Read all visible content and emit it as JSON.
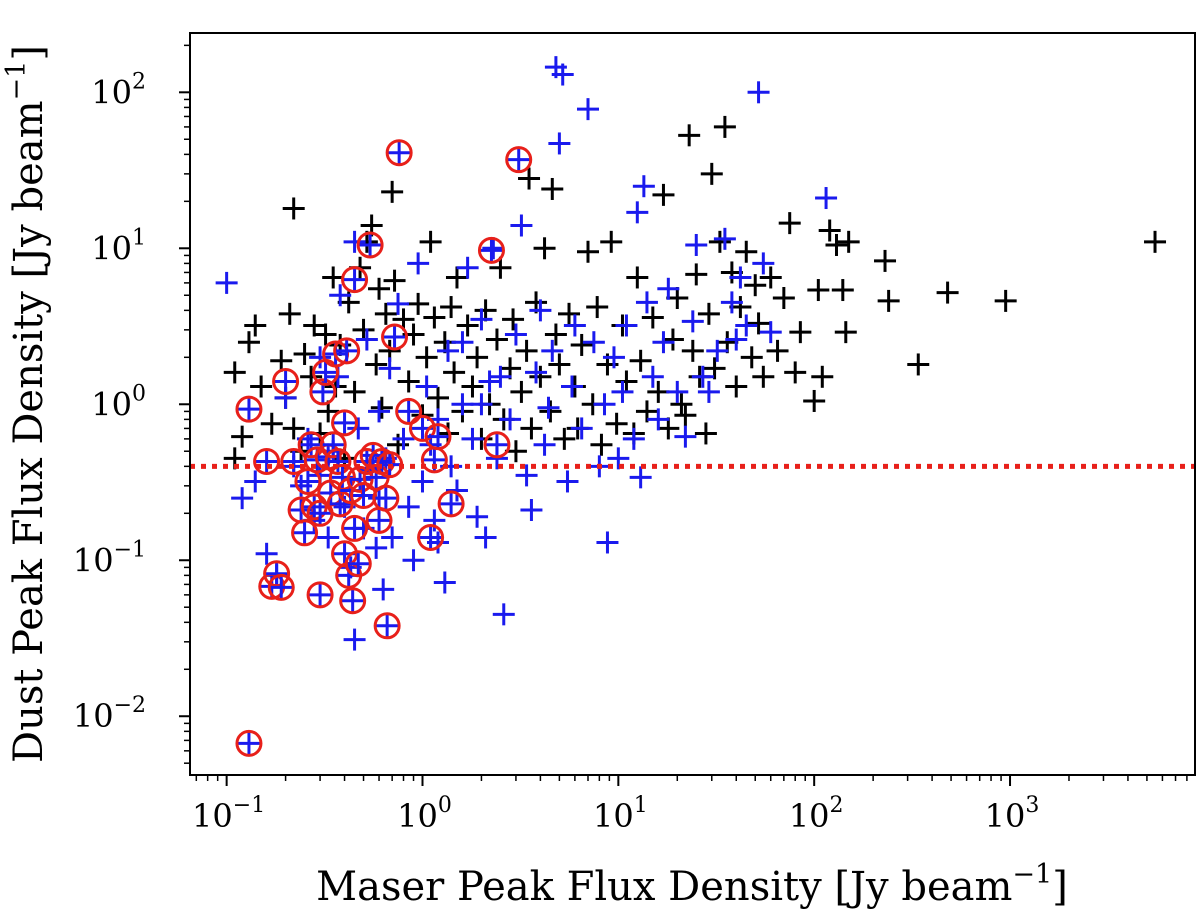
{
  "chart_data": {
    "type": "scatter",
    "xscale": "log",
    "yscale": "log",
    "xlabel": "Maser Peak Flux Density [Jy beam",
    "xlabel_sup": "−1",
    "xlabel_end": "]",
    "ylabel": "Dust Peak Flux Density [Jy beam",
    "ylabel_sup": "−1",
    "ylabel_end": "]",
    "xlim": [
      0.065,
      8800
    ],
    "ylim": [
      0.0042,
      240
    ],
    "xticks": [
      {
        "value": 0.1,
        "base": "10",
        "exp": "−1"
      },
      {
        "value": 1,
        "base": "10",
        "exp": "0"
      },
      {
        "value": 10,
        "base": "10",
        "exp": "1"
      },
      {
        "value": 100,
        "base": "10",
        "exp": "2"
      },
      {
        "value": 1000,
        "base": "10",
        "exp": "3"
      }
    ],
    "yticks": [
      {
        "value": 0.01,
        "base": "10",
        "exp": "−2"
      },
      {
        "value": 0.1,
        "base": "10",
        "exp": "−1"
      },
      {
        "value": 1,
        "base": "10",
        "exp": "0"
      },
      {
        "value": 10,
        "base": "10",
        "exp": "1"
      },
      {
        "value": 100,
        "base": "10",
        "exp": "2"
      }
    ],
    "threshold": {
      "y": 0.4,
      "color": "#e8201a",
      "style": "dotted"
    },
    "colors": {
      "black_series": "#000000",
      "blue_series": "#1a1aee",
      "circle": "#e8201a"
    },
    "series": [
      {
        "name": "black",
        "marker": "plus",
        "points": [
          [
            0.11,
            0.45
          ],
          [
            0.11,
            1.6
          ],
          [
            0.12,
            0.62
          ],
          [
            0.13,
            2.5
          ],
          [
            0.14,
            3.2
          ],
          [
            0.15,
            1.3
          ],
          [
            0.17,
            0.75
          ],
          [
            0.19,
            1.9
          ],
          [
            0.2,
            1.1
          ],
          [
            0.21,
            3.8
          ],
          [
            0.22,
            0.7
          ],
          [
            0.22,
            18
          ],
          [
            0.24,
            0.5
          ],
          [
            0.25,
            2.1
          ],
          [
            0.27,
            1.5
          ],
          [
            0.28,
            3.2
          ],
          [
            0.3,
            0.65
          ],
          [
            0.32,
            2.8
          ],
          [
            0.33,
            0.9
          ],
          [
            0.35,
            6.5
          ],
          [
            0.36,
            1.3
          ],
          [
            0.38,
            2.4
          ],
          [
            0.4,
            0.45
          ],
          [
            0.42,
            4.5
          ],
          [
            0.45,
            1.2
          ],
          [
            0.48,
            7.5
          ],
          [
            0.5,
            3.0
          ],
          [
            0.52,
            11
          ],
          [
            0.55,
            14
          ],
          [
            0.58,
            1.8
          ],
          [
            0.6,
            5.5
          ],
          [
            0.62,
            0.95
          ],
          [
            0.65,
            3.8
          ],
          [
            0.68,
            2.2
          ],
          [
            0.7,
            23
          ],
          [
            0.72,
            6.2
          ],
          [
            0.75,
            0.55
          ],
          [
            0.8,
            3.5
          ],
          [
            0.85,
            1.4
          ],
          [
            0.9,
            2.8
          ],
          [
            0.95,
            4.4
          ],
          [
            1.0,
            0.85
          ],
          [
            1.05,
            2.0
          ],
          [
            1.1,
            11
          ],
          [
            1.15,
            3.6
          ],
          [
            1.2,
            1.1
          ],
          [
            1.3,
            2.5
          ],
          [
            1.35,
            0.65
          ],
          [
            1.4,
            4.2
          ],
          [
            1.45,
            1.6
          ],
          [
            1.5,
            6.5
          ],
          [
            1.6,
            0.9
          ],
          [
            1.7,
            3.2
          ],
          [
            1.8,
            1.3
          ],
          [
            1.9,
            2.0
          ],
          [
            2.0,
            0.6
          ],
          [
            2.1,
            4.0
          ],
          [
            2.2,
            1.0
          ],
          [
            2.4,
            2.6
          ],
          [
            2.5,
            7.5
          ],
          [
            2.6,
            0.8
          ],
          [
            2.8,
            1.7
          ],
          [
            2.9,
            3.5
          ],
          [
            3.0,
            0.5
          ],
          [
            3.2,
            1.2
          ],
          [
            3.4,
            2.2
          ],
          [
            3.5,
            28
          ],
          [
            3.6,
            0.7
          ],
          [
            3.8,
            4.5
          ],
          [
            4.0,
            1.5
          ],
          [
            4.2,
            10
          ],
          [
            4.5,
            0.9
          ],
          [
            4.6,
            24
          ],
          [
            4.8,
            2.8
          ],
          [
            5.0,
            1.8
          ],
          [
            5.3,
            0.6
          ],
          [
            5.6,
            3.8
          ],
          [
            6.0,
            1.3
          ],
          [
            6.2,
            0.7
          ],
          [
            6.5,
            2.4
          ],
          [
            7.0,
            9.5
          ],
          [
            7.4,
            1.0
          ],
          [
            7.8,
            4.2
          ],
          [
            8.2,
            0.55
          ],
          [
            8.8,
            1.8
          ],
          [
            9.2,
            11
          ],
          [
            9.8,
            0.75
          ],
          [
            10.5,
            3.2
          ],
          [
            11,
            1.4
          ],
          [
            12,
            0.65
          ],
          [
            12.5,
            6.5
          ],
          [
            13,
            1.9
          ],
          [
            14,
            0.9
          ],
          [
            15,
            3.6
          ],
          [
            16,
            1.2
          ],
          [
            17,
            22
          ],
          [
            18,
            0.7
          ],
          [
            19,
            2.6
          ],
          [
            20,
            4.8
          ],
          [
            21,
            1.0
          ],
          [
            22,
            0.85
          ],
          [
            23,
            53
          ],
          [
            24,
            2.2
          ],
          [
            25,
            6.8
          ],
          [
            26,
            1.5
          ],
          [
            28,
            0.65
          ],
          [
            29,
            3.8
          ],
          [
            30,
            30
          ],
          [
            31,
            1.7
          ],
          [
            33,
            11
          ],
          [
            35,
            60
          ],
          [
            36,
            2.5
          ],
          [
            38,
            7.0
          ],
          [
            40,
            1.3
          ],
          [
            42,
            4.2
          ],
          [
            45,
            9.5
          ],
          [
            48,
            2.0
          ],
          [
            50,
            5.8
          ],
          [
            52,
            3.3
          ],
          [
            55,
            1.5
          ],
          [
            60,
            6.5
          ],
          [
            65,
            2.2
          ],
          [
            70,
            4.8
          ],
          [
            75,
            14.5
          ],
          [
            80,
            1.6
          ],
          [
            85,
            2.9
          ],
          [
            100,
            1.05
          ],
          [
            105,
            5.4
          ],
          [
            110,
            1.5
          ],
          [
            120,
            13
          ],
          [
            130,
            10.5
          ],
          [
            140,
            5.4
          ],
          [
            145,
            2.9
          ],
          [
            150,
            11
          ],
          [
            230,
            8.3
          ],
          [
            240,
            4.6
          ],
          [
            480,
            5.2
          ],
          [
            950,
            4.6
          ],
          [
            5500,
            11
          ],
          [
            340,
            1.8
          ]
        ]
      },
      {
        "name": "blue",
        "marker": "plus",
        "points": [
          [
            0.1,
            6.0
          ],
          [
            0.12,
            0.25
          ],
          [
            0.14,
            0.32
          ],
          [
            0.16,
            0.11
          ],
          [
            0.18,
            0.08
          ],
          [
            0.2,
            1.1
          ],
          [
            0.22,
            0.4
          ],
          [
            0.24,
            0.3
          ],
          [
            0.26,
            0.6
          ],
          [
            0.28,
            0.18
          ],
          [
            0.3,
            0.35
          ],
          [
            0.33,
            0.14
          ],
          [
            0.35,
            0.5
          ],
          [
            0.37,
            1.5
          ],
          [
            0.38,
            5.0
          ],
          [
            0.4,
            0.22
          ],
          [
            0.43,
            0.09
          ],
          [
            0.45,
            0.031
          ],
          [
            0.47,
            0.7
          ],
          [
            0.5,
            0.16
          ],
          [
            0.52,
            2.6
          ],
          [
            0.55,
            0.38
          ],
          [
            0.58,
            0.12
          ],
          [
            0.6,
            0.25
          ],
          [
            0.63,
            0.065
          ],
          [
            0.65,
            0.45
          ],
          [
            0.68,
            1.7
          ],
          [
            0.7,
            0.14
          ],
          [
            0.75,
            4.4
          ],
          [
            0.8,
            0.6
          ],
          [
            0.85,
            0.22
          ],
          [
            0.9,
            0.1
          ],
          [
            0.95,
            8.0
          ],
          [
            1.0,
            0.32
          ],
          [
            1.05,
            1.3
          ],
          [
            1.1,
            0.55
          ],
          [
            1.15,
            0.18
          ],
          [
            1.2,
            0.13
          ],
          [
            1.3,
            0.072
          ],
          [
            1.35,
            2.2
          ],
          [
            1.4,
            0.4
          ],
          [
            1.5,
            0.28
          ],
          [
            1.6,
            1.0
          ],
          [
            1.7,
            7.5
          ],
          [
            1.8,
            0.6
          ],
          [
            1.9,
            0.19
          ],
          [
            2.0,
            3.5
          ],
          [
            2.1,
            0.14
          ],
          [
            2.2,
            1.4
          ],
          [
            2.3,
            10
          ],
          [
            2.4,
            0.45
          ],
          [
            2.6,
            0.045
          ],
          [
            2.8,
            0.8
          ],
          [
            3.0,
            2.8
          ],
          [
            3.2,
            14
          ],
          [
            3.4,
            0.35
          ],
          [
            3.6,
            0.21
          ],
          [
            3.8,
            1.6
          ],
          [
            4.0,
            4.0
          ],
          [
            4.2,
            0.55
          ],
          [
            4.4,
            0.95
          ],
          [
            4.6,
            2.2
          ],
          [
            4.8,
            145
          ],
          [
            5.0,
            47
          ],
          [
            5.2,
            130
          ],
          [
            5.5,
            0.32
          ],
          [
            5.8,
            1.3
          ],
          [
            6.0,
            3.2
          ],
          [
            6.5,
            0.7
          ],
          [
            7.0,
            78
          ],
          [
            7.5,
            2.5
          ],
          [
            8.0,
            0.4
          ],
          [
            8.5,
            1.0
          ],
          [
            8.8,
            0.13
          ],
          [
            9.5,
            2.0
          ],
          [
            10,
            0.45
          ],
          [
            10.5,
            1.2
          ],
          [
            11,
            3.2
          ],
          [
            12,
            0.6
          ],
          [
            12.5,
            17
          ],
          [
            13,
            0.34
          ],
          [
            13.5,
            25
          ],
          [
            14,
            4.5
          ],
          [
            15,
            1.5
          ],
          [
            16,
            0.8
          ],
          [
            17,
            2.5
          ],
          [
            18,
            5.5
          ],
          [
            20,
            1.2
          ],
          [
            22,
            0.62
          ],
          [
            24,
            3.4
          ],
          [
            25,
            10.5
          ],
          [
            27,
            1.5
          ],
          [
            29,
            1.2
          ],
          [
            32,
            2.2
          ],
          [
            35,
            11.5
          ],
          [
            38,
            4.5
          ],
          [
            40,
            2.6
          ],
          [
            42,
            6.5
          ],
          [
            45,
            3.2
          ],
          [
            52,
            100
          ],
          [
            55,
            8.0
          ],
          [
            60,
            2.9
          ],
          [
            115,
            21
          ],
          [
            0.45,
            11
          ],
          [
            2.0,
            1.0
          ],
          [
            1.6,
            2.5
          ],
          [
            0.3,
            2.0
          ],
          [
            0.6,
            0.9
          ],
          [
            1.2,
            0.8
          ],
          [
            2.5,
            1.5
          ]
        ]
      },
      {
        "name": "blue-circled",
        "marker": "plus-circle",
        "points": [
          [
            0.13,
            0.0067
          ],
          [
            0.13,
            0.93
          ],
          [
            0.16,
            0.43
          ],
          [
            0.17,
            0.068
          ],
          [
            0.18,
            0.082
          ],
          [
            0.19,
            0.067
          ],
          [
            0.2,
            1.4
          ],
          [
            0.22,
            0.43
          ],
          [
            0.24,
            0.21
          ],
          [
            0.25,
            0.15
          ],
          [
            0.26,
            0.32
          ],
          [
            0.27,
            0.55
          ],
          [
            0.28,
            0.22
          ],
          [
            0.29,
            0.44
          ],
          [
            0.3,
            0.2
          ],
          [
            0.3,
            0.06
          ],
          [
            0.31,
            1.2
          ],
          [
            0.32,
            1.6
          ],
          [
            0.33,
            0.46
          ],
          [
            0.34,
            0.27
          ],
          [
            0.35,
            0.55
          ],
          [
            0.36,
            2.1
          ],
          [
            0.37,
            0.43
          ],
          [
            0.38,
            0.23
          ],
          [
            0.39,
            0.34
          ],
          [
            0.4,
            0.76
          ],
          [
            0.4,
            0.11
          ],
          [
            0.41,
            2.2
          ],
          [
            0.42,
            0.08
          ],
          [
            0.43,
            0.28
          ],
          [
            0.44,
            0.055
          ],
          [
            0.45,
            6.3
          ],
          [
            0.45,
            0.16
          ],
          [
            0.47,
            0.095
          ],
          [
            0.48,
            0.33
          ],
          [
            0.5,
            0.26
          ],
          [
            0.52,
            0.43
          ],
          [
            0.54,
            10.5
          ],
          [
            0.56,
            0.47
          ],
          [
            0.58,
            0.34
          ],
          [
            0.6,
            0.18
          ],
          [
            0.62,
            0.43
          ],
          [
            0.65,
            0.25
          ],
          [
            0.66,
            0.038
          ],
          [
            0.68,
            0.41
          ],
          [
            0.72,
            2.7
          ],
          [
            0.76,
            41
          ],
          [
            0.85,
            0.9
          ],
          [
            1.0,
            0.7
          ],
          [
            1.1,
            0.14
          ],
          [
            1.15,
            0.44
          ],
          [
            1.2,
            0.62
          ],
          [
            1.4,
            0.23
          ],
          [
            2.25,
            9.7
          ],
          [
            2.4,
            0.55
          ],
          [
            3.1,
            37
          ]
        ]
      }
    ]
  }
}
